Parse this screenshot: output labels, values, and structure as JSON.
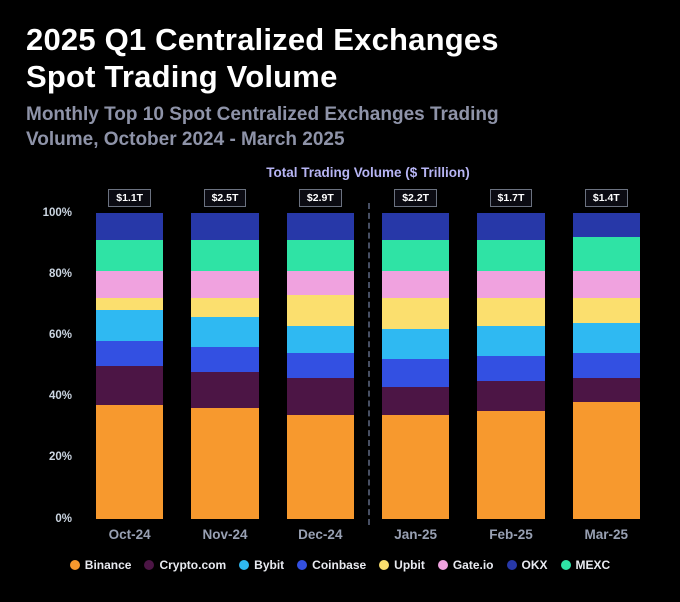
{
  "header": {
    "title_line1": "2025 Q1 Centralized Exchanges",
    "title_line2": "Spot Trading Volume",
    "subtitle_line1": "Monthly Top 10 Spot Centralized Exchanges Trading",
    "subtitle_line2": "Volume, October 2024 - March 2025"
  },
  "chart_data": {
    "type": "bar",
    "stacked": true,
    "normalized": "percent",
    "title": "Total Trading Volume ($ Trillion)",
    "categories": [
      "Oct-24",
      "Nov-24",
      "Dec-24",
      "Jan-25",
      "Feb-25",
      "Mar-25"
    ],
    "totals": [
      "$1.1T",
      "$2.5T",
      "$2.9T",
      "$2.2T",
      "$1.7T",
      "$1.4T"
    ],
    "y_ticks": [
      "100%",
      "80%",
      "60%",
      "40%",
      "20%",
      "0%"
    ],
    "ylim": [
      0,
      100
    ],
    "grid": false,
    "separator_after_category": "Dec-24",
    "series": [
      {
        "name": "Binance",
        "color": "#f7992e",
        "values": [
          37,
          36,
          34,
          34,
          35,
          38
        ]
      },
      {
        "name": "Crypto.com",
        "color": "#4c1545",
        "values": [
          13,
          12,
          12,
          9,
          10,
          8
        ]
      },
      {
        "name": "Coinbase",
        "color": "#3350e2",
        "values": [
          8,
          8,
          8,
          9,
          8,
          8
        ]
      },
      {
        "name": "Bybit",
        "color": "#2fb9f2",
        "values": [
          10,
          10,
          9,
          10,
          10,
          10
        ]
      },
      {
        "name": "Upbit",
        "color": "#fbdf6e",
        "values": [
          4,
          6,
          10,
          10,
          9,
          8
        ]
      },
      {
        "name": "Gate.io",
        "color": "#f0a2df",
        "values": [
          9,
          9,
          8,
          9,
          9,
          9
        ]
      },
      {
        "name": "MEXC",
        "color": "#2fe3a5",
        "values": [
          10,
          10,
          10,
          10,
          10,
          11
        ]
      },
      {
        "name": "OKX",
        "color": "#2738a8",
        "values": [
          9,
          9,
          9,
          9,
          9,
          8
        ]
      }
    ],
    "legend": [
      {
        "label": "Binance",
        "color": "#f7992e"
      },
      {
        "label": "Crypto.com",
        "color": "#4c1545"
      },
      {
        "label": "Bybit",
        "color": "#2fb9f2"
      },
      {
        "label": "Coinbase",
        "color": "#3350e2"
      },
      {
        "label": "Upbit",
        "color": "#fbdf6e"
      },
      {
        "label": "Gate.io",
        "color": "#f0a2df"
      },
      {
        "label": "OKX",
        "color": "#2738a8"
      },
      {
        "label": "MEXC",
        "color": "#2fe3a5"
      }
    ],
    "legend_position": "bottom"
  }
}
